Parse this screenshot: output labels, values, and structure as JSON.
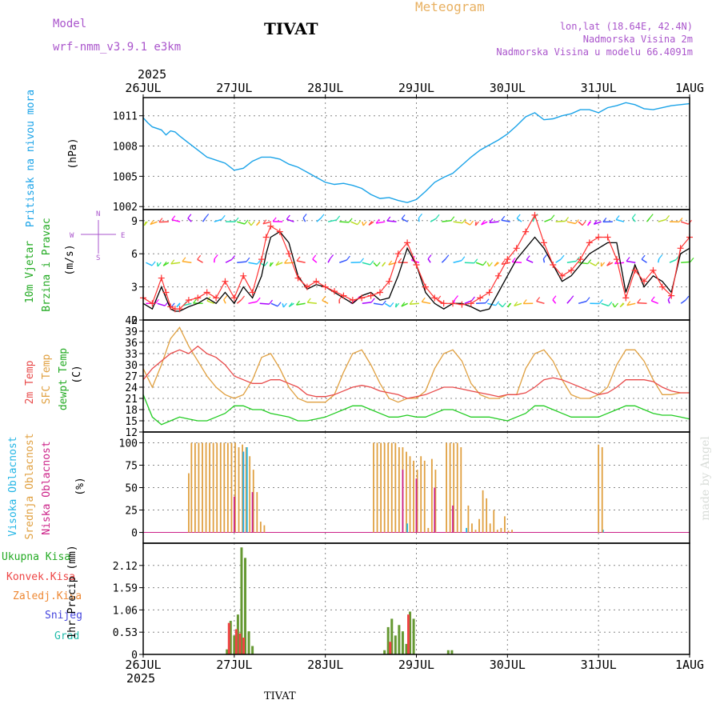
{
  "header": {
    "model_label": "Model",
    "model_name": "wrf-nmm_v3.9.1  e3km",
    "station": "TIVAT",
    "title": "Meteogram",
    "coords": "lon,lat (18.64E, 42.4N)",
    "elev": "Nadmorska Visina 2m",
    "model_elev": "Nadmorska Visina u modelu 66.4091m",
    "footer_station": "TIVAT",
    "watermark": "made by Angel"
  },
  "colors": {
    "pressure": "#1aa3e8",
    "wind_black": "#000000",
    "wind_red": "#ff3333",
    "temp2m": "#e84a4a",
    "sfc": "#e0a040",
    "dewpt": "#22cc22",
    "cloud_high": "#22b5e5",
    "cloud_mid": "#e0a040",
    "cloud_low": "#cc2288",
    "precip_total": "#669933",
    "precip_conv": "#ee4444",
    "green_lbl": "#22aa22",
    "legend_purple": "#aa55cc",
    "title_orange": "#e8b060"
  },
  "chart_data": [
    {
      "type": "line",
      "panel": "pressure",
      "ylabel": "Pritisak na nivou mora",
      "unit": "(hPa)",
      "ylim": [
        1001.7,
        1012.8
      ],
      "yticks": [
        1002,
        1005,
        1008,
        1011
      ],
      "x_days": [
        0,
        0.05,
        0.1,
        0.2,
        0.25,
        0.3,
        0.35,
        0.4,
        0.5,
        0.6,
        0.7,
        0.8,
        0.9,
        1.0,
        1.1,
        1.2,
        1.3,
        1.4,
        1.5,
        1.6,
        1.7,
        1.8,
        1.9,
        2.0,
        2.1,
        2.2,
        2.3,
        2.4,
        2.5,
        2.6,
        2.7,
        2.8,
        2.9,
        3.0,
        3.1,
        3.2,
        3.3,
        3.4,
        3.5,
        3.6,
        3.7,
        3.8,
        3.9,
        4.0,
        4.1,
        4.2,
        4.3,
        4.4,
        4.5,
        4.6,
        4.7,
        4.8,
        4.9,
        5.0,
        5.1,
        5.2,
        5.3,
        5.4,
        5.5,
        5.6,
        5.7,
        5.8,
        5.9,
        6.0
      ],
      "values": [
        1010.8,
        1010.3,
        1009.9,
        1009.6,
        1009.1,
        1009.5,
        1009.4,
        1009.0,
        1008.3,
        1007.6,
        1006.9,
        1006.6,
        1006.3,
        1005.6,
        1005.8,
        1006.5,
        1006.9,
        1006.9,
        1006.7,
        1006.2,
        1005.9,
        1005.4,
        1004.9,
        1004.4,
        1004.2,
        1004.3,
        1004.1,
        1003.8,
        1003.2,
        1002.8,
        1002.9,
        1002.6,
        1002.4,
        1002.7,
        1003.5,
        1004.4,
        1004.9,
        1005.3,
        1006.1,
        1006.9,
        1007.6,
        1008.1,
        1008.6,
        1009.2,
        1010.0,
        1010.9,
        1011.3,
        1010.6,
        1010.7,
        1011.0,
        1011.2,
        1011.6,
        1011.6,
        1011.3,
        1011.8,
        1012.0,
        1012.3,
        1012.1,
        1011.7,
        1011.6,
        1011.8,
        1012.0,
        1012.1,
        1012.2
      ]
    },
    {
      "type": "line",
      "panel": "wind",
      "ylabel_1": "10m Vjetar",
      "ylabel_2": "Brzina i Pravac",
      "unit": "(m/s)",
      "ylim": [
        0,
        10
      ],
      "yticks": [
        0,
        3,
        6,
        9
      ],
      "compass_n": "N",
      "compass_w": "W",
      "compass_e": "E",
      "compass_s": "S",
      "x_days": [
        0,
        0.1,
        0.2,
        0.25,
        0.3,
        0.35,
        0.4,
        0.5,
        0.6,
        0.7,
        0.8,
        0.9,
        1.0,
        1.1,
        1.2,
        1.3,
        1.35,
        1.4,
        1.5,
        1.6,
        1.7,
        1.8,
        1.9,
        2.0,
        2.1,
        2.2,
        2.3,
        2.4,
        2.5,
        2.6,
        2.7,
        2.8,
        2.9,
        3.0,
        3.1,
        3.2,
        3.3,
        3.4,
        3.5,
        3.6,
        3.7,
        3.8,
        3.9,
        4.0,
        4.1,
        4.2,
        4.3,
        4.4,
        4.5,
        4.6,
        4.7,
        4.8,
        4.9,
        5.0,
        5.1,
        5.2,
        5.3,
        5.4,
        5.5,
        5.6,
        5.7,
        5.8,
        5.9,
        6.0
      ],
      "values": [
        1.5,
        1.0,
        3.0,
        2.0,
        1.0,
        0.8,
        0.8,
        1.2,
        1.5,
        2.0,
        1.5,
        2.5,
        1.5,
        3.0,
        2.0,
        4.0,
        6.0,
        7.5,
        8.0,
        7.0,
        4.0,
        2.8,
        3.2,
        3.0,
        2.5,
        2.0,
        1.5,
        2.2,
        2.5,
        1.8,
        2.0,
        4.0,
        6.5,
        5.0,
        2.5,
        1.5,
        1.0,
        1.5,
        1.5,
        1.2,
        0.8,
        1.0,
        2.5,
        4.0,
        5.5,
        6.5,
        7.5,
        6.5,
        5.0,
        3.5,
        4.0,
        5.0,
        6.0,
        6.5,
        7.0,
        7.0,
        2.5,
        5.0,
        3.0,
        4.0,
        3.5,
        2.5,
        6.0,
        6.5
      ],
      "gusts": [
        2.0,
        1.5,
        3.8,
        2.5,
        1.2,
        1.0,
        1.0,
        1.8,
        2.0,
        2.5,
        2.0,
        3.5,
        2.0,
        4.0,
        2.5,
        5.5,
        7.5,
        8.5,
        8.0,
        6.0,
        3.8,
        3.0,
        3.5,
        3.0,
        2.6,
        2.2,
        1.8,
        2.0,
        2.2,
        2.5,
        3.5,
        6.0,
        7.0,
        5.0,
        3.0,
        2.0,
        1.5,
        1.5,
        1.4,
        1.5,
        2.0,
        2.5,
        4.0,
        5.5,
        6.5,
        8.0,
        9.5,
        7.0,
        5.0,
        4.0,
        4.5,
        5.5,
        7.0,
        7.5,
        7.5,
        5.5,
        2.0,
        4.5,
        3.5,
        4.5,
        3.0,
        2.2,
        6.5,
        7.5
      ]
    },
    {
      "type": "line",
      "panel": "temperature",
      "ylabel_1": "2m Temp",
      "ylabel_2": "SFC Temp",
      "ylabel_3": "dewpt Temp",
      "unit": "(C)",
      "ylim": [
        12,
        42
      ],
      "yticks": [
        12,
        15,
        18,
        21,
        24,
        27,
        30,
        33,
        36,
        39,
        42
      ],
      "x_days": [
        0,
        0.1,
        0.2,
        0.3,
        0.4,
        0.5,
        0.6,
        0.7,
        0.8,
        0.9,
        1.0,
        1.1,
        1.2,
        1.3,
        1.4,
        1.5,
        1.6,
        1.7,
        1.8,
        1.9,
        2.0,
        2.1,
        2.2,
        2.3,
        2.4,
        2.5,
        2.6,
        2.7,
        2.8,
        2.9,
        3.0,
        3.1,
        3.2,
        3.3,
        3.4,
        3.5,
        3.6,
        3.7,
        3.8,
        3.9,
        4.0,
        4.1,
        4.2,
        4.3,
        4.4,
        4.5,
        4.6,
        4.7,
        4.8,
        4.9,
        5.0,
        5.1,
        5.2,
        5.3,
        5.4,
        5.5,
        5.6,
        5.7,
        5.8,
        5.9,
        6.0
      ],
      "temp2m": [
        26,
        29,
        31,
        33,
        34,
        33,
        35,
        33,
        32,
        30,
        27,
        26,
        25,
        25,
        26,
        26,
        25,
        24,
        22,
        21.5,
        21.5,
        22,
        23,
        24,
        24.5,
        24,
        23,
        22.5,
        22,
        21,
        21.5,
        22,
        23,
        24,
        24,
        23.5,
        23,
        22.5,
        22,
        21.5,
        22,
        22,
        22.5,
        24,
        26,
        26.5,
        26,
        25,
        24,
        23,
        22,
        22.5,
        24,
        26,
        26,
        26,
        25.5,
        24,
        23,
        22.5,
        22.5
      ],
      "sfc": [
        29,
        24,
        30,
        37,
        40,
        35,
        31,
        27,
        24,
        22,
        21,
        22,
        26,
        32,
        33,
        29,
        24,
        21,
        20,
        20,
        20,
        22,
        28,
        33,
        34,
        30,
        25,
        21,
        20,
        21,
        21,
        23,
        29,
        33,
        34,
        31,
        25,
        22,
        21,
        21,
        22,
        22,
        29,
        33,
        34,
        31,
        26,
        22,
        21,
        21,
        22,
        24,
        30,
        34,
        34,
        31,
        26,
        22,
        22,
        22.5,
        22.5
      ],
      "dewpt": [
        22,
        16,
        14,
        15,
        16,
        15.5,
        15,
        15,
        16,
        17,
        19,
        19,
        18,
        18,
        17,
        16.5,
        16,
        15,
        15,
        15.5,
        16,
        17,
        18,
        19,
        19,
        18,
        17,
        16,
        16,
        16.5,
        16,
        16,
        17,
        18,
        18,
        17,
        16,
        16,
        16,
        15.5,
        15,
        16,
        17,
        19,
        19,
        18,
        17,
        16,
        16,
        16,
        16,
        17,
        18,
        19,
        19,
        18,
        17,
        16.5,
        16.5,
        16,
        15.5
      ]
    },
    {
      "type": "bar",
      "panel": "clouds",
      "ylabel_1": "Visoka Oblacnost",
      "ylabel_2": "Srednja Oblacnost",
      "ylabel_3": "Niska Oblacnost",
      "unit": "(%)",
      "ylim": [
        0,
        100
      ],
      "yticks": [
        0,
        25,
        50,
        75,
        100
      ],
      "series": [
        {
          "name": "Srednja Oblacnost",
          "x_days": [
            0.5,
            0.53,
            0.57,
            0.61,
            0.65,
            0.69,
            0.73,
            0.77,
            0.81,
            0.85,
            0.89,
            0.93,
            0.97,
            1.01,
            1.05,
            1.09,
            1.13,
            1.17,
            1.21,
            1.25,
            1.29,
            1.33,
            2.53,
            2.57,
            2.61,
            2.65,
            2.69,
            2.73,
            2.77,
            2.81,
            2.85,
            2.89,
            2.93,
            2.97,
            3.01,
            3.05,
            3.09,
            3.13,
            3.17,
            3.21,
            3.33,
            3.37,
            3.41,
            3.45,
            3.49,
            3.57,
            3.61,
            3.65,
            3.69,
            3.73,
            3.77,
            3.81,
            3.85,
            3.89,
            3.93,
            3.97,
            4.01,
            4.05
          ],
          "values": [
            66,
            100,
            100,
            100,
            100,
            100,
            100,
            100,
            100,
            100,
            100,
            100,
            100,
            100,
            95,
            98,
            95,
            85,
            70,
            45,
            12,
            8,
            100,
            100,
            100,
            100,
            100,
            100,
            100,
            95,
            95,
            90,
            85,
            80,
            70,
            85,
            80,
            5,
            82,
            70,
            100,
            100,
            100,
            100,
            95,
            30,
            10,
            3,
            15,
            47,
            38,
            10,
            25,
            3,
            5,
            18,
            2,
            3
          ]
        },
        {
          "name": "Niska Oblacnost",
          "x_days": [
            1.0,
            1.1,
            1.2,
            2.85,
            3.0,
            3.2,
            3.4
          ],
          "values": [
            40,
            90,
            45,
            70,
            60,
            50,
            30
          ]
        },
        {
          "name": "Visoka Oblacnost",
          "x_days": [
            1.1,
            1.14,
            2.9,
            3.55,
            5.05
          ],
          "values": [
            90,
            95,
            10,
            5,
            3
          ]
        },
        {
          "name": "Srednja Oblacnost (31JUL)",
          "x_days": [
            5.0,
            5.04
          ],
          "values": [
            98,
            95
          ]
        }
      ]
    },
    {
      "type": "bar",
      "panel": "precipitation",
      "ylabel_1": "1hr Precip",
      "unit": "(mm)",
      "legend": [
        "Ukupna Kisa",
        "Konvek.Kisa",
        "Zaledj.Kisa",
        "Snijeg",
        "Grad"
      ],
      "ylim": [
        0,
        2.65
      ],
      "yticks": [
        "0",
        "0.53",
        "1.06",
        "1.59",
        "2.12"
      ],
      "series": [
        {
          "name": "Ukupna Kisa",
          "x_days": [
            0.92,
            0.96,
            1.0,
            1.04,
            1.08,
            1.12,
            1.16,
            1.2,
            2.65,
            2.69,
            2.73,
            2.77,
            2.81,
            2.85,
            2.89,
            2.93,
            2.97,
            3.35,
            3.39
          ],
          "values": [
            0.12,
            0.8,
            0.45,
            0.95,
            2.55,
            2.3,
            0.55,
            0.2,
            0.1,
            0.65,
            0.85,
            0.45,
            0.7,
            0.55,
            0.25,
            1.02,
            0.85,
            0.1,
            0.1
          ]
        },
        {
          "name": "Konvek.Kisa",
          "x_days": [
            0.96,
            1.04,
            1.08,
            1.12,
            2.73,
            2.93
          ],
          "values": [
            0.75,
            0.6,
            0.5,
            0.4,
            0.3,
            0.95
          ]
        }
      ]
    }
  ],
  "x_axis": {
    "year": "2025",
    "days": [
      "26JUL",
      "27JUL",
      "28JUL",
      "29JUL",
      "30JUL",
      "31JUL",
      "1AUG"
    ]
  }
}
